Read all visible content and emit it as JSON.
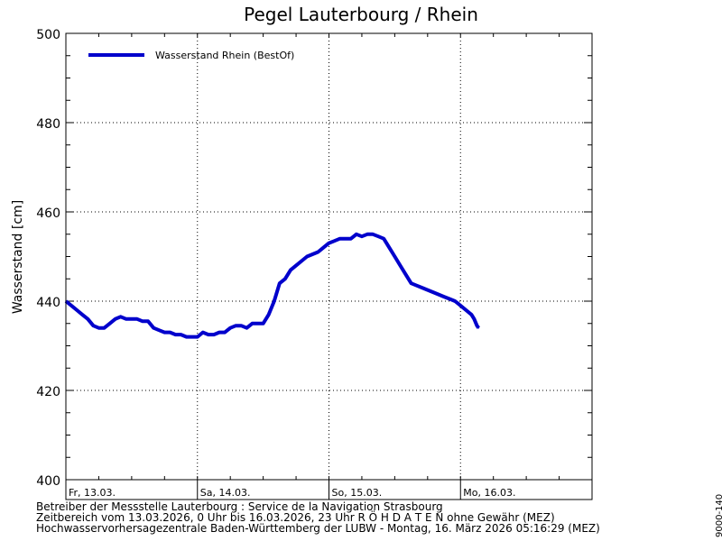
{
  "title": "Pegel Lauterbourg / Rhein",
  "ylabel": "Wasserstand [cm]",
  "footer": {
    "line1": "Betreiber der Messstelle Lauterbourg : Service de la Navigation Strasbourg",
    "line2": "Zeitbereich vom 13.03.2026, 0 Uhr bis 16.03.2026, 23 Uhr    R Ö H D A T E N ohne Gewähr (MEZ)",
    "line3": "Hochwasservorhersagezentrale Baden-Württemberg der LUBW -  Montag, 16. März 2026 05:16:29 (MEZ)"
  },
  "station_code": "9000-140",
  "colors": {
    "series": "#0000cc",
    "grid": "#000000",
    "axis": "#000000"
  },
  "chart_data": {
    "type": "line",
    "title": "Pegel Lauterbourg / Rhein",
    "xlabel": "",
    "ylabel": "Wasserstand [cm]",
    "ylim": [
      400,
      500
    ],
    "yticks": [
      400,
      420,
      440,
      460,
      480,
      500
    ],
    "xlim_hours": [
      0,
      96
    ],
    "x_unit": "hours since 13.03.2026 00:00",
    "xtick_labels": [
      {
        "hour": 0,
        "label": "Fr, 13.03."
      },
      {
        "hour": 24,
        "label": "Sa, 14.03."
      },
      {
        "hour": 48,
        "label": "So, 15.03."
      },
      {
        "hour": 72,
        "label": "Mo, 16.03."
      }
    ],
    "grid": true,
    "legend": "top-left",
    "series": [
      {
        "name": "Wasserstand Rhein (BestOf)",
        "x": [
          0,
          1,
          2,
          3,
          4,
          5,
          6,
          7,
          8,
          9,
          10,
          11,
          12,
          13,
          14,
          15,
          16,
          17,
          18,
          19,
          20,
          21,
          22,
          23,
          24,
          25,
          26,
          27,
          28,
          29,
          30,
          31,
          32,
          33,
          34,
          35,
          36,
          37,
          38,
          39,
          40,
          41,
          42,
          43,
          44,
          45,
          46,
          47,
          48,
          49,
          50,
          51,
          52,
          53,
          54,
          55,
          56,
          57,
          58,
          59,
          60,
          61,
          62,
          63,
          64,
          65,
          66,
          67,
          68,
          69,
          70,
          71,
          72,
          73,
          74,
          74.5,
          75,
          75.3
        ],
        "y": [
          440,
          439,
          438,
          437,
          436,
          434.5,
          434,
          434,
          435,
          436,
          436.5,
          436,
          436,
          436,
          435.5,
          435.5,
          434,
          433.5,
          433,
          433,
          432.5,
          432.5,
          432,
          432,
          432,
          433,
          432.5,
          432.5,
          433,
          433,
          434,
          434.5,
          434.5,
          434,
          435,
          435,
          435,
          437,
          440,
          444,
          445,
          447,
          448,
          449,
          450,
          450.5,
          451,
          452,
          453,
          453.5,
          454,
          454,
          454,
          455,
          454.5,
          455,
          455,
          454.5,
          454,
          452,
          450,
          448,
          446,
          444,
          443.5,
          443,
          442.5,
          442,
          441.5,
          441,
          440.5,
          440,
          439,
          438,
          437,
          436,
          434.5,
          434
        ]
      }
    ]
  }
}
